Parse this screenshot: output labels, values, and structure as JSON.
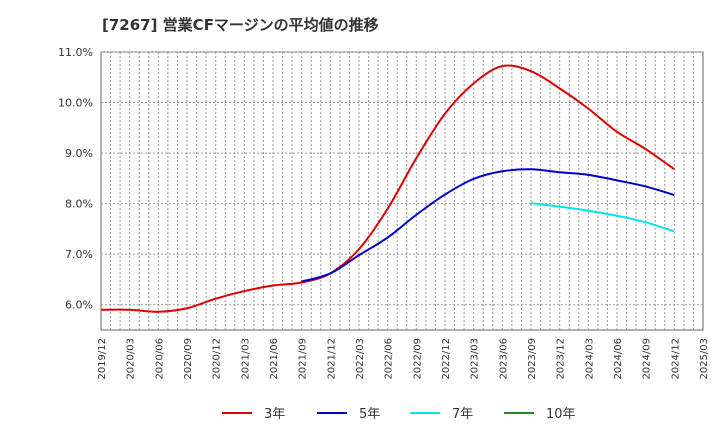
{
  "chart_data": {
    "type": "line",
    "title": "[7267]  営業CFマージンの平均値の推移",
    "y_tick_labels": [
      "6.0%",
      "7.0%",
      "8.0%",
      "9.0%",
      "10.0%",
      "11.0%"
    ],
    "y_ticks": [
      6.0,
      7.0,
      8.0,
      9.0,
      10.0,
      11.0
    ],
    "ylim": [
      5.5,
      11.0
    ],
    "x_tick_labels": [
      "2019/12",
      "2020/03",
      "2020/06",
      "2020/09",
      "2020/12",
      "2021/03",
      "2021/06",
      "2021/09",
      "2021/12",
      "2022/03",
      "2022/06",
      "2022/09",
      "2022/12",
      "2023/03",
      "2023/06",
      "2023/09",
      "2023/12",
      "2024/03",
      "2024/06",
      "2024/09",
      "2024/12",
      "2025/03"
    ],
    "grid": true,
    "legend_position": "bottom",
    "series": [
      {
        "name": "3年",
        "color": "#dd0000",
        "x": [
          "2019/12",
          "2020/03",
          "2020/06",
          "2020/09",
          "2020/12",
          "2021/03",
          "2021/06",
          "2021/09",
          "2021/12",
          "2022/03",
          "2022/06",
          "2022/09",
          "2022/12",
          "2023/03",
          "2023/06",
          "2023/09",
          "2023/12",
          "2024/03",
          "2024/06",
          "2024/09",
          "2024/12"
        ],
        "values": [
          5.9,
          5.9,
          5.86,
          5.93,
          6.12,
          6.27,
          6.38,
          6.44,
          6.62,
          7.1,
          7.9,
          8.9,
          9.78,
          10.38,
          10.72,
          10.62,
          10.28,
          9.88,
          9.42,
          9.08,
          8.68
        ]
      },
      {
        "name": "5年",
        "color": "#0000cc",
        "x": [
          "2021/09",
          "2021/12",
          "2022/03",
          "2022/06",
          "2022/09",
          "2022/12",
          "2023/03",
          "2023/06",
          "2023/09",
          "2023/12",
          "2024/03",
          "2024/06",
          "2024/09",
          "2024/12"
        ],
        "values": [
          6.46,
          6.62,
          6.98,
          7.33,
          7.78,
          8.18,
          8.49,
          8.64,
          8.68,
          8.62,
          8.57,
          8.46,
          8.34,
          8.17
        ]
      },
      {
        "name": "7年",
        "color": "#00e5ee",
        "x": [
          "2023/09",
          "2023/12",
          "2024/03",
          "2024/06",
          "2024/09",
          "2024/12"
        ],
        "values": [
          8.01,
          7.94,
          7.86,
          7.76,
          7.63,
          7.45
        ]
      },
      {
        "name": "10年",
        "color": "#228b22",
        "x": [],
        "values": []
      }
    ]
  }
}
